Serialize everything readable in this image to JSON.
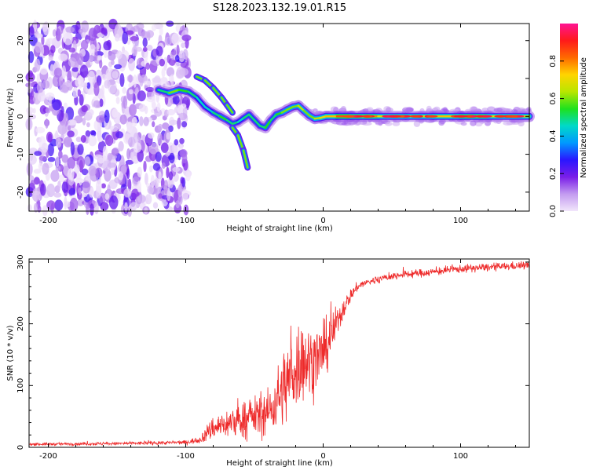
{
  "title": "S128.2023.132.19.01.R15",
  "chart_data": [
    {
      "type": "heatmap",
      "name": "spectrogram",
      "xlabel": "Height of straight line (km)",
      "ylabel": "Frequency (Hz)",
      "xlim": [
        -214,
        150
      ],
      "ylim": [
        -25,
        24.5
      ],
      "xticks": [
        -200,
        -100,
        0,
        100
      ],
      "yticks": [
        -20,
        -10,
        0,
        10,
        20
      ],
      "colorbar": {
        "label": "Normalized spectral amplitude",
        "range": [
          0,
          1
        ],
        "ticks": [
          0.0,
          0.2,
          0.4,
          0.6,
          0.8
        ],
        "colors": [
          "#f2e6fb",
          "#c39bf0",
          "#7a1ee8",
          "#2a16ff",
          "#0099ff",
          "#00d9c8",
          "#1ee11e",
          "#b8e600",
          "#ffd400",
          "#ff6a00",
          "#ff1a1a",
          "#ff1493"
        ]
      },
      "tone_track": {
        "x": [
          -120,
          -112,
          -105,
          -98,
          -92,
          -86,
          -80,
          -75,
          -70,
          -66,
          -62,
          -58,
          -54,
          -50,
          -46,
          -42,
          -38,
          -34,
          -30,
          -26,
          -22,
          -18,
          -14,
          -10,
          -6,
          -2,
          2,
          10,
          20,
          40,
          60,
          80,
          100,
          120,
          150
        ],
        "y": [
          7,
          6.2,
          7,
          6.5,
          5,
          2.5,
          1,
          0,
          -1,
          -2,
          -1.5,
          -0.5,
          0.5,
          -1,
          -2.5,
          -3,
          -1,
          0.5,
          1,
          1.8,
          2.5,
          2.8,
          1.5,
          0.2,
          -0.6,
          -0.4,
          0,
          0,
          0,
          0,
          0,
          0,
          0,
          0,
          0
        ],
        "amp": [
          0.5,
          0.6,
          0.55,
          0.5,
          0.45,
          0.45,
          0.5,
          0.55,
          0.5,
          0.5,
          0.45,
          0.5,
          0.5,
          0.5,
          0.5,
          0.55,
          0.5,
          0.55,
          0.6,
          0.6,
          0.6,
          0.65,
          0.6,
          0.6,
          0.65,
          0.7,
          0.75,
          0.85,
          0.8,
          0.7,
          0.7,
          0.75,
          0.8,
          0.7,
          0.75
        ]
      },
      "side_branches": [
        {
          "x": [
            -92,
            -86,
            -80,
            -74,
            -70,
            -66
          ],
          "y": [
            10.5,
            9.5,
            7.5,
            5,
            3,
            1
          ]
        },
        {
          "x": [
            -66,
            -62,
            -58,
            -55
          ],
          "y": [
            -3,
            -5,
            -9,
            -13.5
          ]
        }
      ]
    },
    {
      "type": "line",
      "name": "snr",
      "xlabel": "Height of straight line (km)",
      "ylabel": "SNR (10 * v/v)",
      "xlim": [
        -214,
        150
      ],
      "ylim": [
        0,
        305
      ],
      "xticks": [
        -200,
        -100,
        0,
        100
      ],
      "yticks": [
        0,
        100,
        200,
        300
      ],
      "color": "#ee2a2a",
      "envelope": {
        "x": [
          -214,
          -150,
          -100,
          -90,
          -85,
          -80,
          -70,
          -60,
          -50,
          -40,
          -35,
          -30,
          -25,
          -20,
          -15,
          -10,
          -5,
          0,
          5,
          10,
          15,
          20,
          25,
          30,
          40,
          50,
          60,
          80,
          100,
          125,
          150
        ],
        "mean": [
          5,
          6,
          8,
          12,
          22,
          32,
          38,
          44,
          50,
          56,
          72,
          92,
          110,
          130,
          142,
          138,
          145,
          152,
          176,
          202,
          226,
          246,
          260,
          266,
          272,
          277,
          280,
          284,
          289,
          292,
          295
        ],
        "noise": [
          2,
          2.5,
          3,
          5,
          12,
          18,
          22,
          26,
          30,
          34,
          42,
          55,
          65,
          68,
          62,
          55,
          50,
          45,
          35,
          25,
          15,
          10,
          7,
          6,
          6,
          6,
          6,
          6,
          6,
          6,
          6
        ]
      }
    }
  ]
}
